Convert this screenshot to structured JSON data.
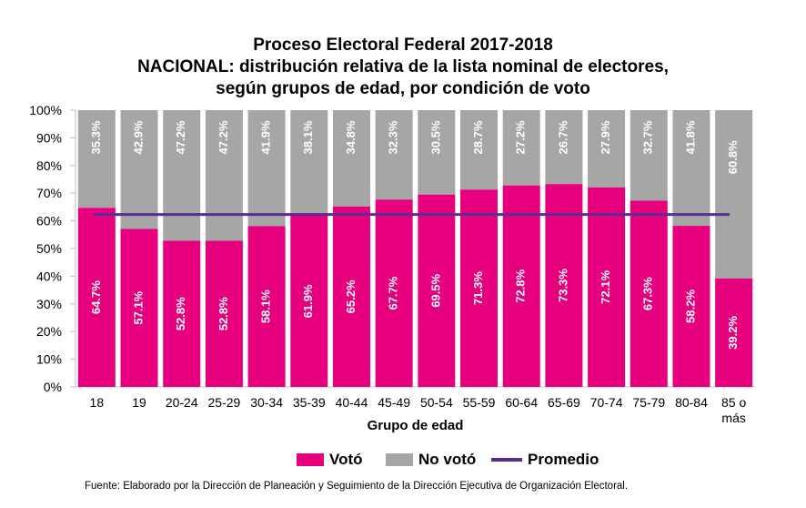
{
  "chart_data": {
    "type": "bar",
    "stacked": true,
    "title_lines": [
      "Proceso Electoral Federal 2017-2018",
      "NACIONAL:  distribución relativa de la lista nominal de electores,",
      "según grupos de edad, por condición de voto"
    ],
    "categories": [
      "18",
      "19",
      "20-24",
      "25-29",
      "30-34",
      "35-39",
      "40-44",
      "45-49",
      "50-54",
      "55-59",
      "60-64",
      "65-69",
      "70-74",
      "75-79",
      "80-84",
      "85 o más"
    ],
    "category_labels": [
      [
        "18"
      ],
      [
        "19"
      ],
      [
        "20-24"
      ],
      [
        "25-29"
      ],
      [
        "30-34"
      ],
      [
        "35-39"
      ],
      [
        "40-44"
      ],
      [
        "45-49"
      ],
      [
        "50-54"
      ],
      [
        "55-59"
      ],
      [
        "60-64"
      ],
      [
        "65-69"
      ],
      [
        "70-74"
      ],
      [
        "75-79"
      ],
      [
        "80-84"
      ],
      [
        "85 o",
        "más"
      ]
    ],
    "series": [
      {
        "name": "Votó",
        "color": "#e6007e",
        "values": [
          64.7,
          57.1,
          52.8,
          52.8,
          58.1,
          61.9,
          65.2,
          67.7,
          69.5,
          71.3,
          72.8,
          73.3,
          72.1,
          67.3,
          58.2,
          39.2
        ],
        "labels": [
          "64.7%",
          "57.1%",
          "52.8%",
          "52.8%",
          "58.1%",
          "61.9%",
          "65.2%",
          "67.7%",
          "69.5%",
          "71.3%",
          "72.8%",
          "73.3%",
          "72.1%",
          "67.3%",
          "58.2%",
          "39.2%"
        ]
      },
      {
        "name": "No votó",
        "color": "#a6a6a6",
        "values": [
          35.3,
          42.9,
          47.2,
          47.2,
          41.9,
          38.1,
          34.8,
          32.3,
          30.5,
          28.7,
          27.2,
          26.7,
          27.9,
          32.7,
          41.8,
          60.8
        ],
        "labels": [
          "35.3%",
          "42.9%",
          "47.2%",
          "47.2%",
          "41.9%",
          "38.1%",
          "34.8%",
          "32.3%",
          "30.5%",
          "28.7%",
          "27.2%",
          "26.7%",
          "27.9%",
          "32.7%",
          "41.8%",
          "60.8%"
        ]
      }
    ],
    "average": {
      "name": "Promedio",
      "value": 62.3,
      "color": "#5b2c91"
    },
    "xlabel": "Grupo de edad",
    "ylabel": "",
    "ylim": [
      0,
      100
    ],
    "y_ticks": [
      0,
      10,
      20,
      30,
      40,
      50,
      60,
      70,
      80,
      90,
      100
    ],
    "y_tick_labels": [
      "0%",
      "10%",
      "20%",
      "30%",
      "40%",
      "50%",
      "60%",
      "70%",
      "80%",
      "90%",
      "100%"
    ],
    "grid": false,
    "legend_position": "bottom"
  },
  "legend": {
    "voto": "Votó",
    "no_voto": "No votó",
    "promedio": "Promedio"
  },
  "colors": {
    "voto": "#e6007e",
    "no_voto": "#a6a6a6",
    "promedio": "#5b2c91"
  },
  "source": "Fuente:  Elaborado por la Dirección de Planeación y Seguimiento de la Dirección Ejecutiva de Organización Electoral."
}
